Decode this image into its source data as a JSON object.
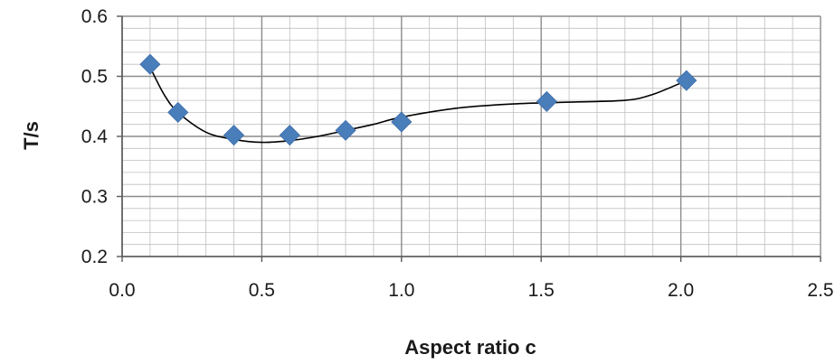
{
  "chart_data": {
    "type": "scatter",
    "title": "",
    "xlabel": "Aspect ratio c",
    "ylabel": "T/s",
    "xlim": [
      0,
      2.5
    ],
    "ylim": [
      0.2,
      0.6
    ],
    "x_ticks": [
      "0.0",
      "0.5",
      "1.0",
      "1.5",
      "2.0",
      "2.5"
    ],
    "y_ticks": [
      "0.2",
      "0.3",
      "0.4",
      "0.5",
      "0.6"
    ],
    "grid": true,
    "legend": "none",
    "series": [
      {
        "marker": "diamond",
        "color": "#4a7ebb",
        "x": [
          0.1,
          0.2,
          0.4,
          0.6,
          0.8,
          1.0,
          1.52,
          2.02
        ],
        "y": [
          0.52,
          0.44,
          0.402,
          0.402,
          0.41,
          0.424,
          0.458,
          0.493
        ]
      }
    ],
    "trendline": {
      "color": "#000000",
      "x": [
        0.1,
        0.15,
        0.2,
        0.3,
        0.4,
        0.5,
        0.6,
        0.7,
        0.8,
        0.9,
        1.0,
        1.2,
        1.4,
        1.6,
        1.8,
        1.9,
        2.02
      ],
      "y": [
        0.515,
        0.47,
        0.44,
        0.407,
        0.395,
        0.39,
        0.393,
        0.4,
        0.41,
        0.42,
        0.432,
        0.447,
        0.454,
        0.457,
        0.46,
        0.47,
        0.493
      ]
    }
  }
}
